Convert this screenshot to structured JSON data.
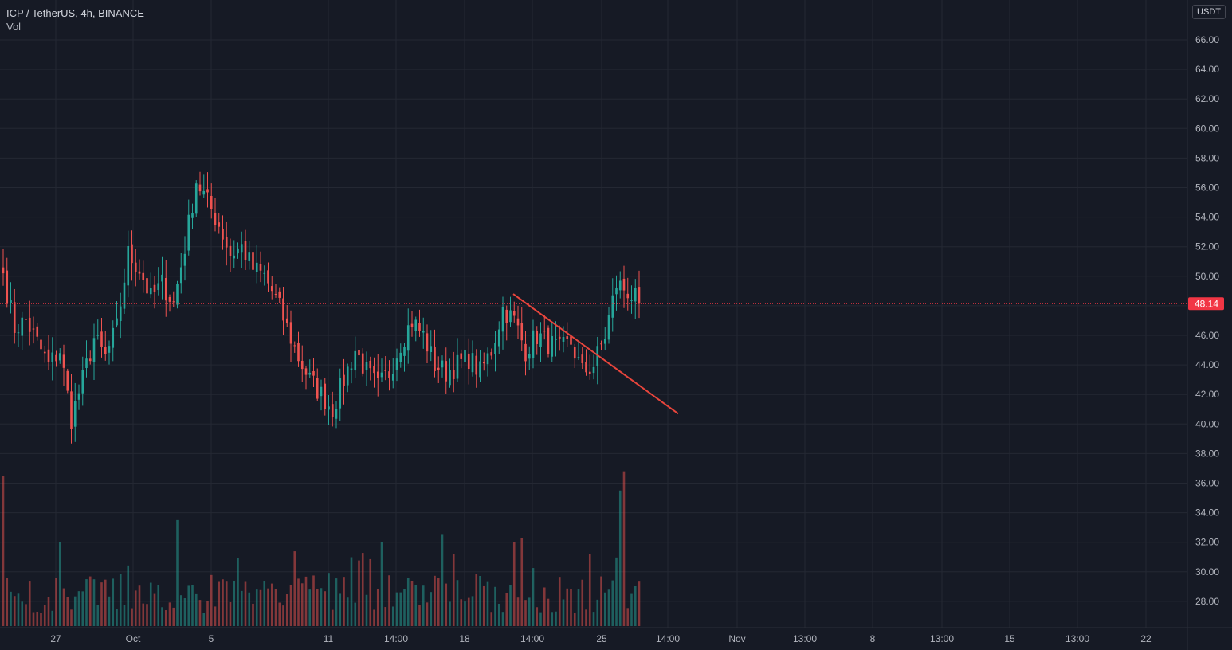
{
  "header": {
    "symbol_line": "ICP / TetherUS, 4h, BINANCE",
    "volume_label": "Vol"
  },
  "currency": "USDT",
  "colors": {
    "background": "#161a25",
    "grid": "#242833",
    "up": "#26a69a",
    "down": "#ef5350",
    "trendline": "#e8453c",
    "axis_text": "#b2b5be",
    "price_tag": "#f23645"
  },
  "chart_data": {
    "type": "candlestick",
    "interval": "4h",
    "y_ticks": [
      "66.00",
      "64.00",
      "62.00",
      "60.00",
      "58.00",
      "56.00",
      "54.00",
      "52.00",
      "50.00",
      "48.00",
      "46.00",
      "44.00",
      "42.00",
      "40.00",
      "38.00",
      "36.00",
      "34.00",
      "32.00",
      "30.00",
      "28.00"
    ],
    "ylim": [
      27,
      67
    ],
    "x_ticks": [
      "27",
      "Oct",
      "5",
      "11",
      "14:00",
      "18",
      "14:00",
      "25",
      "14:00",
      "Nov",
      "13:00",
      "8",
      "13:00",
      "15",
      "13:00",
      "22"
    ],
    "last_price": "48.14",
    "grid": true,
    "trendline": {
      "from_price": 48.8,
      "to_price": 40.7,
      "color": "#e8453c"
    },
    "price_anchors": [
      [
        0,
        50.2
      ],
      [
        3,
        46.5
      ],
      [
        6,
        47.0
      ],
      [
        9,
        45.5
      ],
      [
        12,
        44.0
      ],
      [
        15,
        45.0
      ],
      [
        18,
        40.4
      ],
      [
        21,
        43.0
      ],
      [
        24,
        45.8
      ],
      [
        27,
        44.5
      ],
      [
        30,
        46.5
      ],
      [
        33,
        51.5
      ],
      [
        36,
        50.5
      ],
      [
        39,
        48.5
      ],
      [
        42,
        49.5
      ],
      [
        45,
        48.2
      ],
      [
        48,
        52.0
      ],
      [
        51,
        56.5
      ],
      [
        54,
        55.0
      ],
      [
        57,
        53.5
      ],
      [
        60,
        51.5
      ],
      [
        63,
        52.0
      ],
      [
        66,
        50.5
      ],
      [
        69,
        50.0
      ],
      [
        72,
        48.5
      ],
      [
        75,
        46.5
      ],
      [
        78,
        44.5
      ],
      [
        81,
        43.0
      ],
      [
        84,
        42.0
      ],
      [
        87,
        41.0
      ],
      [
        90,
        43.0
      ],
      [
        93,
        45.0
      ],
      [
        96,
        43.5
      ],
      [
        99,
        42.5
      ],
      [
        102,
        43.5
      ],
      [
        105,
        45.5
      ],
      [
        108,
        47.0
      ],
      [
        111,
        46.0
      ],
      [
        114,
        44.0
      ],
      [
        117,
        43.5
      ],
      [
        120,
        44.0
      ],
      [
        123,
        44.5
      ],
      [
        126,
        43.5
      ],
      [
        129,
        45.0
      ],
      [
        132,
        47.8
      ],
      [
        135,
        47.0
      ],
      [
        138,
        45.0
      ],
      [
        141,
        46.0
      ],
      [
        144,
        45.5
      ],
      [
        147,
        45.0
      ],
      [
        150,
        45.5
      ],
      [
        153,
        43.5
      ],
      [
        156,
        44.0
      ],
      [
        159,
        46.0
      ],
      [
        162,
        49.5
      ],
      [
        165,
        49.0
      ],
      [
        168,
        48.14
      ]
    ],
    "volume_peaks": [
      [
        0,
        36.5
      ],
      [
        15,
        32.0
      ],
      [
        46,
        33.5
      ],
      [
        100,
        32.0
      ],
      [
        116,
        32.5
      ],
      [
        135,
        32.0
      ],
      [
        137,
        32.3
      ],
      [
        163,
        35.5
      ],
      [
        164,
        36.8
      ]
    ]
  }
}
